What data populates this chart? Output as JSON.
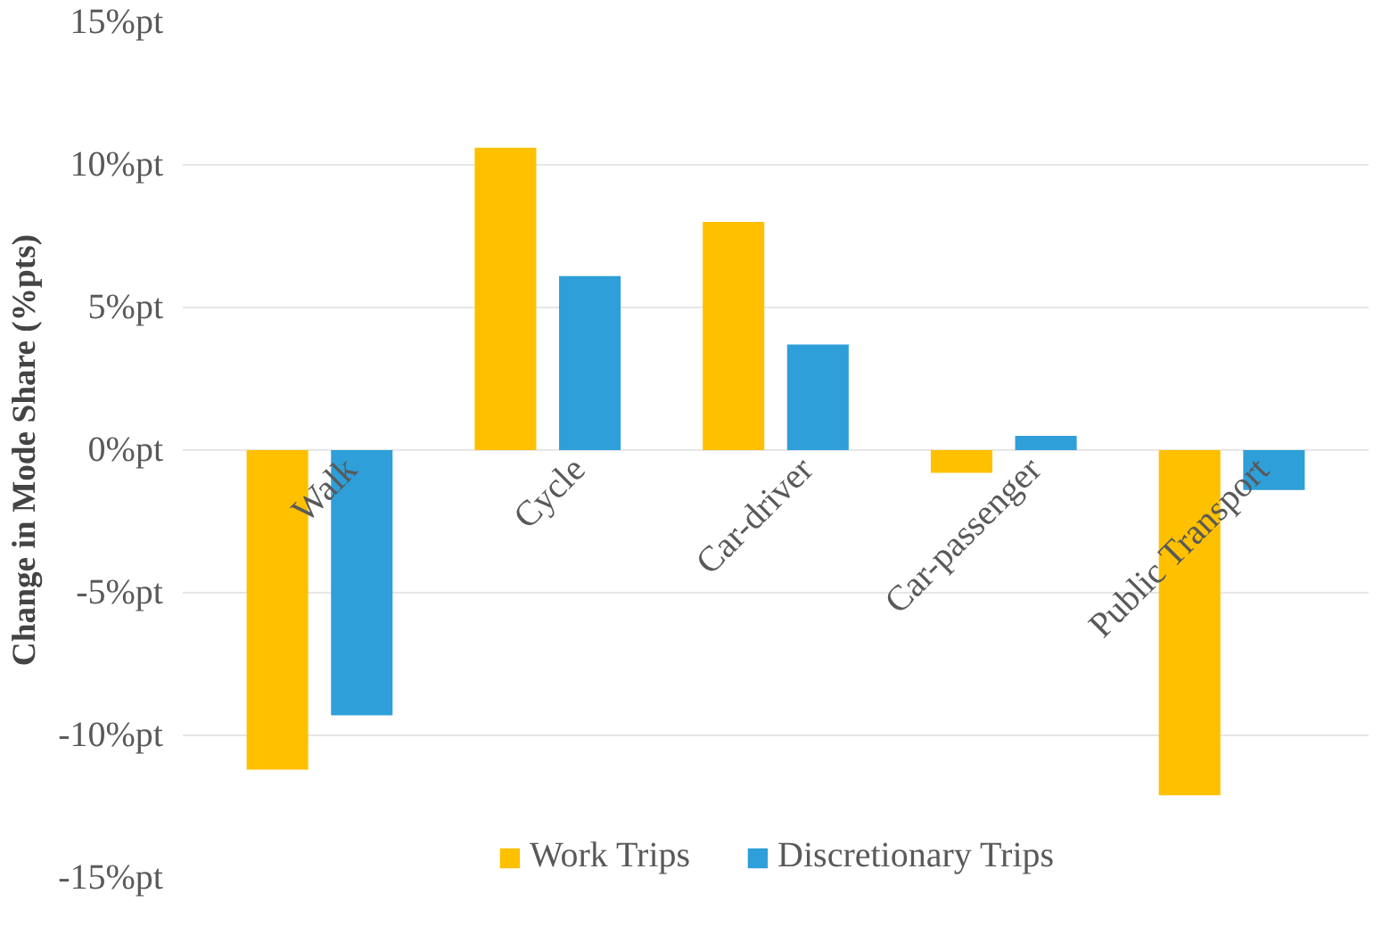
{
  "chart_data": {
    "type": "bar",
    "ylabel": "Change in Mode Share (%pts)",
    "categories": [
      "Walk",
      "Cycle",
      "Car-driver",
      "Car-passenger",
      "Public Transport"
    ],
    "series": [
      {
        "name": "Work Trips",
        "color": "#ffc000",
        "values": [
          -11.2,
          10.6,
          8.0,
          -0.8,
          -12.1
        ]
      },
      {
        "name": "Discretionary Trips",
        "color": "#2e9fd8",
        "values": [
          -9.3,
          6.1,
          3.7,
          0.5,
          -1.4
        ]
      }
    ],
    "ylim": [
      -15,
      15
    ],
    "yticks": [
      {
        "value": -15,
        "label": "-15%pt"
      },
      {
        "value": -10,
        "label": "-10%pt"
      },
      {
        "value": -5,
        "label": "-5%pt"
      },
      {
        "value": 0,
        "label": "0%pt"
      },
      {
        "value": 5,
        "label": "5%pt"
      },
      {
        "value": 10,
        "label": "10%pt"
      },
      {
        "value": 15,
        "label": "15%pt"
      }
    ],
    "grid": "y",
    "legend": "bottom"
  }
}
